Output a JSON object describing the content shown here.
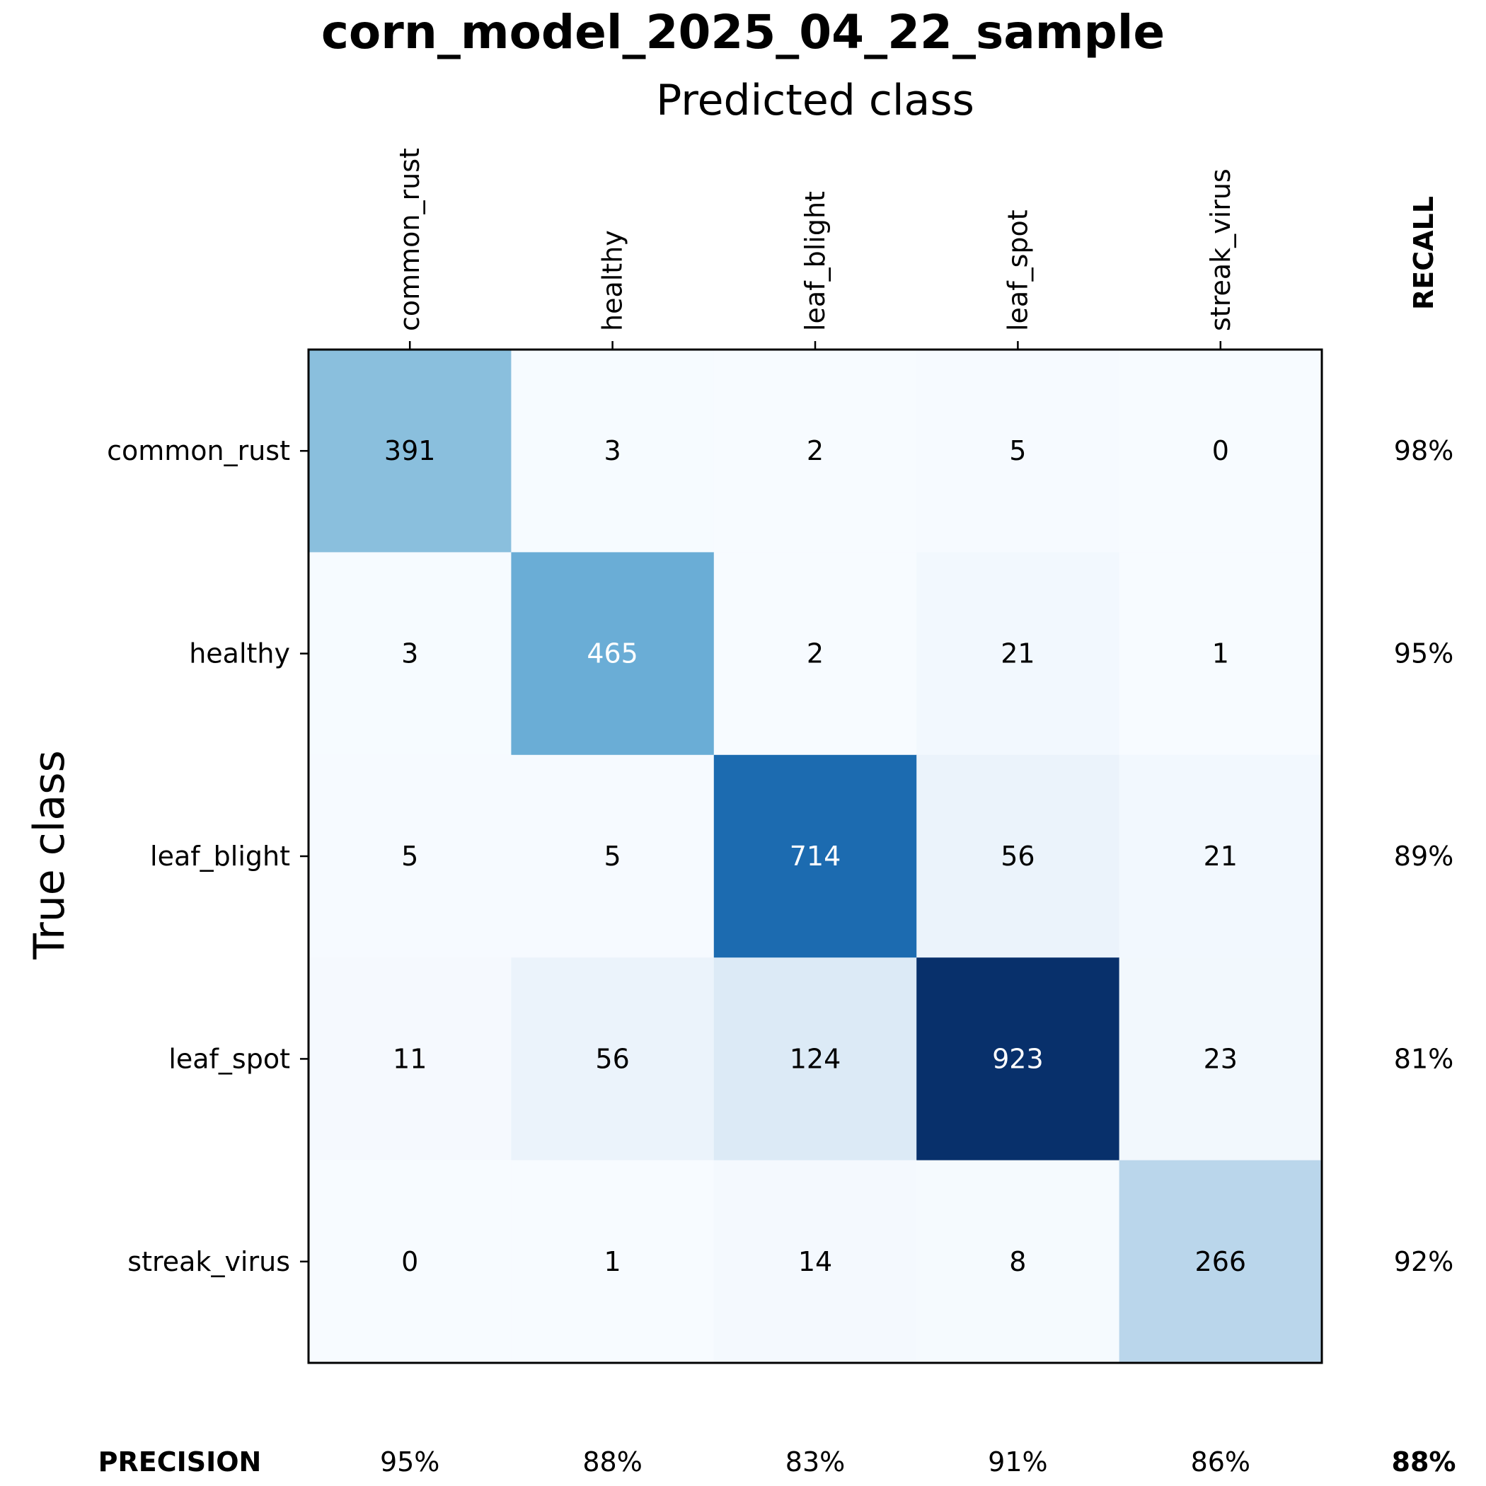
{
  "chart_data": {
    "type": "heatmap",
    "title": "corn_model_2025_04_22_sample",
    "xlabel": "Predicted class",
    "ylabel": "True class",
    "x_categories": [
      "common_rust",
      "healthy",
      "leaf_blight",
      "leaf_spot",
      "streak_virus"
    ],
    "y_categories": [
      "common_rust",
      "healthy",
      "leaf_blight",
      "leaf_spot",
      "streak_virus"
    ],
    "values": [
      [
        391,
        3,
        2,
        5,
        0
      ],
      [
        3,
        465,
        2,
        21,
        1
      ],
      [
        5,
        5,
        714,
        56,
        21
      ],
      [
        11,
        56,
        124,
        923,
        23
      ],
      [
        0,
        1,
        14,
        8,
        266
      ]
    ],
    "colormap": "Blues",
    "color_range": [
      0,
      923
    ],
    "recall_label": "RECALL",
    "recall": [
      "98%",
      "95%",
      "89%",
      "81%",
      "92%"
    ],
    "precision_label": "PRECISION",
    "precision": [
      "95%",
      "88%",
      "83%",
      "91%",
      "86%"
    ],
    "overall": "88%"
  }
}
